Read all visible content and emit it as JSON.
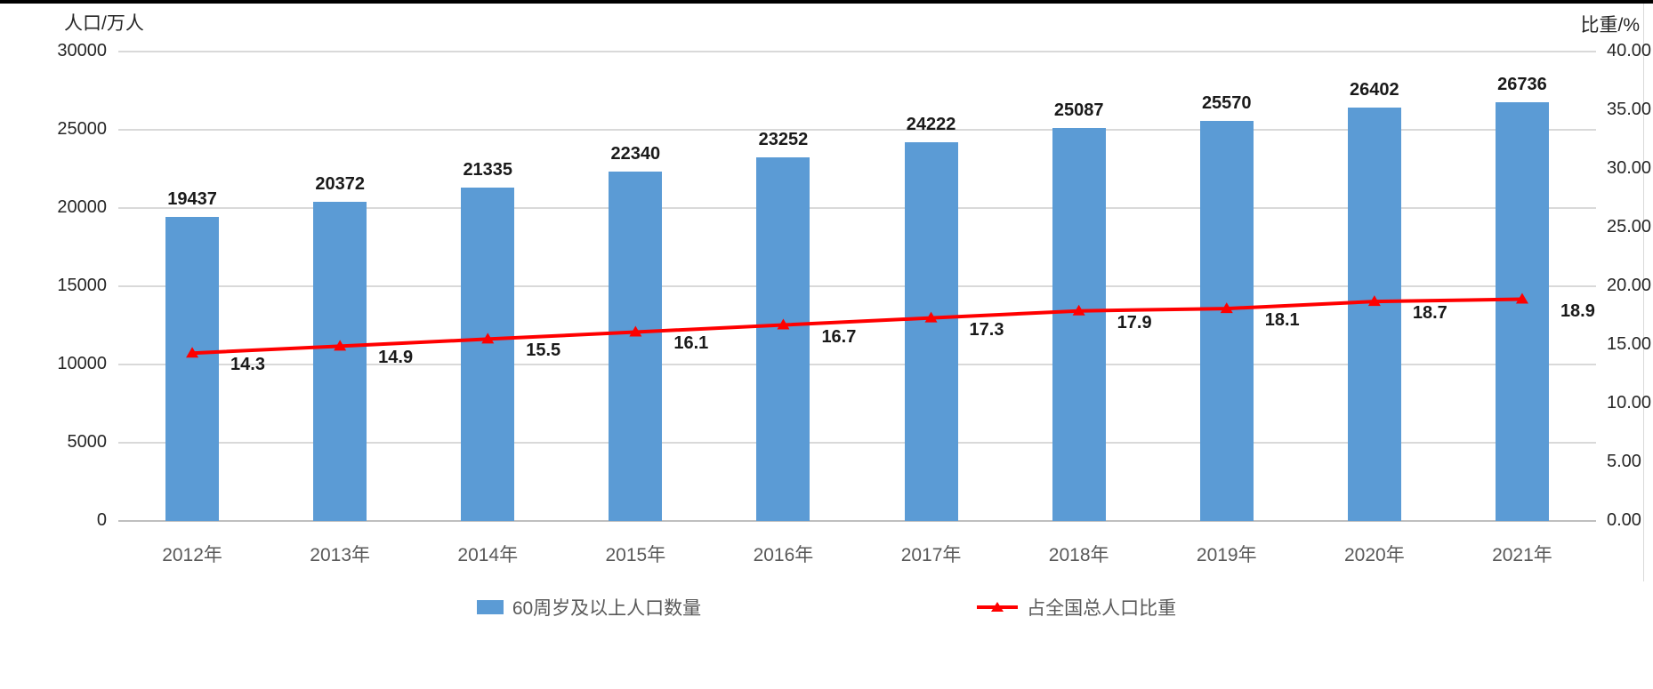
{
  "chart": {
    "left_axis_title": "人口/万人",
    "right_axis_title": "比重/%",
    "legend": [
      {
        "label": "60周岁及以上人口数量",
        "marker": "blue-square"
      },
      {
        "label": "占全国总人口比重",
        "marker": "red-line-triangle"
      }
    ]
  },
  "colors": {
    "bar": "#5B9BD5",
    "line": "#FF0000",
    "grid": "#D9D9D9",
    "axis_line": "#BFBFBF",
    "tick_text": "#262626",
    "category_text": "#595959",
    "data_label_text": "#1A1A1A",
    "legend_text": "#595959"
  },
  "chart_data": {
    "type": "combo",
    "title": "",
    "categories": [
      "2012年",
      "2013年",
      "2014年",
      "2015年",
      "2016年",
      "2017年",
      "2018年",
      "2019年",
      "2020年",
      "2021年"
    ],
    "series": [
      {
        "name": "60周岁及以上人口数量",
        "type": "bar",
        "axis": "left",
        "values": [
          19437,
          20372,
          21335,
          22340,
          23252,
          24222,
          25087,
          25570,
          26402,
          26736
        ],
        "labels": [
          "19437",
          "20372",
          "21335",
          "22340",
          "23252",
          "24222",
          "25087",
          "25570",
          "26402",
          "26736"
        ]
      },
      {
        "name": "占全国总人口比重",
        "type": "line",
        "axis": "right",
        "values": [
          14.3,
          14.9,
          15.5,
          16.1,
          16.7,
          17.3,
          17.9,
          18.1,
          18.7,
          18.9
        ],
        "labels": [
          "14.3",
          "14.9",
          "15.5",
          "16.1",
          "16.7",
          "17.3",
          "17.9",
          "18.1",
          "18.7",
          "18.9"
        ]
      }
    ],
    "axes": {
      "left": {
        "title": "人口/万人",
        "min": 0,
        "max": 30000,
        "step": 5000,
        "ticks": [
          "0",
          "5000",
          "10000",
          "15000",
          "20000",
          "25000",
          "30000"
        ]
      },
      "right": {
        "title": "比重/%",
        "min": 0,
        "max": 40,
        "step": 5,
        "ticks": [
          "0.00",
          "5.00",
          "10.00",
          "15.00",
          "20.00",
          "25.00",
          "30.00",
          "35.00",
          "40.00"
        ]
      }
    },
    "grid": "horizontal",
    "legend_position": "bottom",
    "data_labels": true
  }
}
